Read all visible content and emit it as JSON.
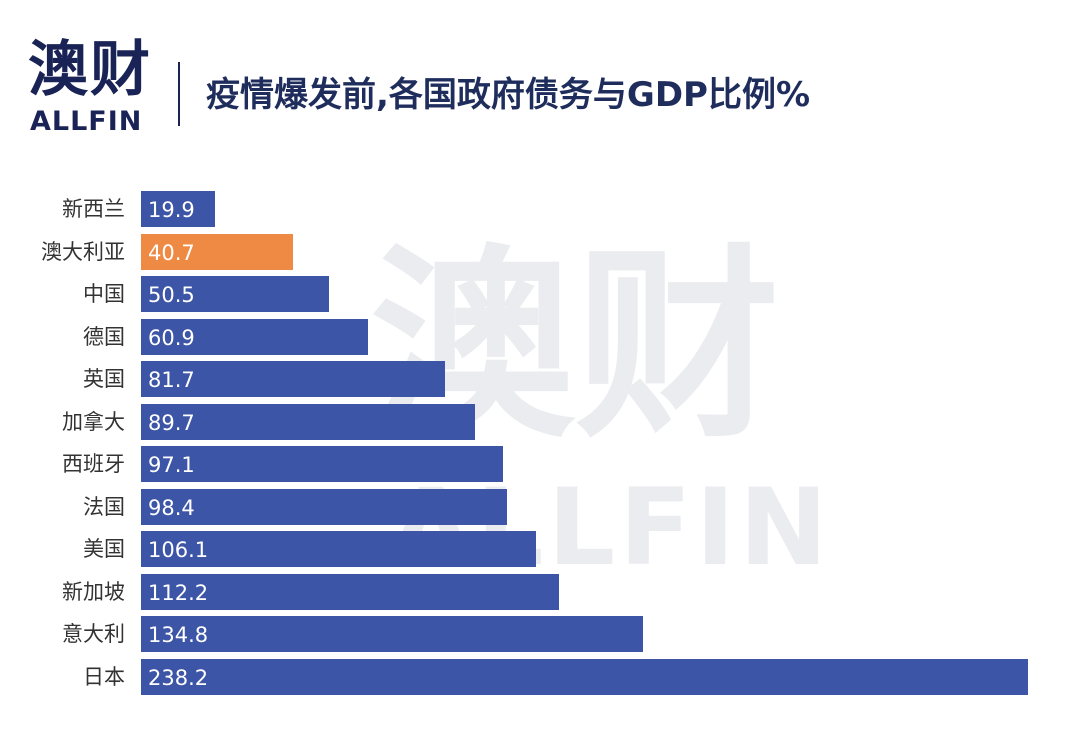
{
  "header": {
    "logo_cn": "澳财",
    "logo_en": "ALLFIN",
    "title": "疫情爆发前,各国政府债务与GDP比例%"
  },
  "watermark": {
    "cn": "澳财",
    "en": "ALLFIN"
  },
  "colors": {
    "bar": "#3d55a6",
    "highlight": "#ef8a45",
    "logo": "#1a2355"
  },
  "chart_data": {
    "type": "bar",
    "orientation": "horizontal",
    "title": "疫情爆发前,各国政府债务与GDP比例%",
    "categories": [
      "新西兰",
      "澳大利亚",
      "中国",
      "德国",
      "英国",
      "加拿大",
      "西班牙",
      "法国",
      "美国",
      "新加坡",
      "意大利",
      "日本"
    ],
    "values": [
      19.9,
      40.7,
      50.5,
      60.9,
      81.7,
      89.7,
      97.1,
      98.4,
      106.1,
      112.2,
      134.8,
      238.2
    ],
    "highlight": "澳大利亚",
    "xlim": [
      0,
      238.2
    ],
    "grid": false,
    "legend": "none"
  }
}
